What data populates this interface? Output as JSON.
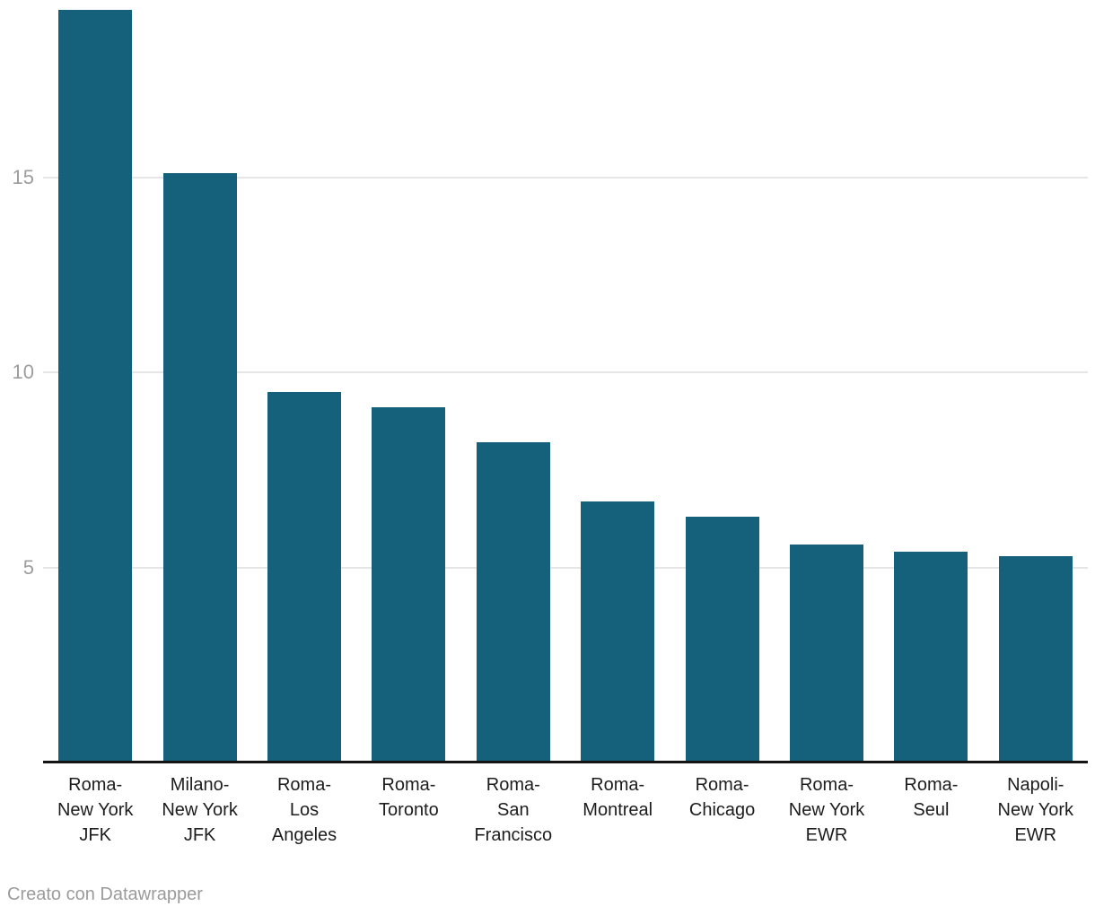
{
  "chart_data": {
    "type": "bar",
    "title": "",
    "xlabel": "",
    "ylabel": "",
    "categories": [
      "Roma-New York JFK",
      "Milano-New York JFK",
      "Roma-Los Angeles",
      "Roma-Toronto",
      "Roma-San Francisco",
      "Roma-Montreal",
      "Roma-Chicago",
      "Roma-New York EWR",
      "Roma-Seul",
      "Napoli-New York EWR"
    ],
    "category_lines": [
      [
        "Roma-",
        "New York",
        "JFK"
      ],
      [
        "Milano-",
        "New York",
        "JFK"
      ],
      [
        "Roma-",
        "Los",
        "Angeles"
      ],
      [
        "Roma-",
        "Toronto"
      ],
      [
        "Roma-",
        "San",
        "Francisco"
      ],
      [
        "Roma-",
        "Montreal"
      ],
      [
        "Roma-",
        "Chicago"
      ],
      [
        "Roma-",
        "New York",
        "EWR"
      ],
      [
        "Roma-",
        "Seul"
      ],
      [
        "Napoli-",
        "New York",
        "EWR"
      ]
    ],
    "values": [
      19.3,
      15.1,
      9.5,
      9.1,
      8.2,
      6.7,
      6.3,
      5.6,
      5.4,
      5.3
    ],
    "y_ticks": [
      5,
      10,
      15
    ],
    "ylim": [
      0,
      19.55
    ],
    "grid": true,
    "legend": false,
    "legend_position": "none"
  },
  "footer": {
    "attribution": "Creato con Datawrapper"
  },
  "colors": {
    "bar": "#15607a",
    "axis_line": "#141414",
    "gridline": "#e6e6e6",
    "tick_label": "#9d9d9d",
    "x_label": "#1d1d1d",
    "attribution": "#9b9b9b",
    "background": "#ffffff"
  }
}
